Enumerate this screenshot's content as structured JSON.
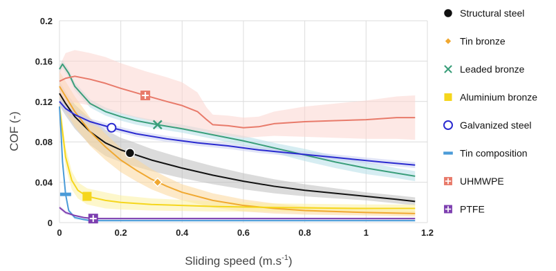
{
  "chart_data": {
    "type": "line",
    "xlabel": "Sliding speed (m.s",
    "xlabel_sup": "-1",
    "xlabel_end": ")",
    "ylabel": "COF (-)",
    "xlim": [
      0,
      1.2
    ],
    "ylim": [
      0,
      0.2
    ],
    "x_ticks": [
      "0",
      "0.2",
      "0.4",
      "0.6",
      "0.8",
      "1",
      "1.2"
    ],
    "y_ticks": [
      "0",
      "0.04",
      "0.08",
      "0.12",
      "0.16",
      "0.2"
    ],
    "grid": true,
    "legend_position": "right",
    "series": [
      {
        "name": "Structural steel",
        "color": "#111111",
        "band_color": "#bdbdbd",
        "marker": "circle-filled",
        "marker_point": [
          0.23,
          0.069
        ],
        "x": [
          0.0,
          0.02,
          0.05,
          0.1,
          0.15,
          0.2,
          0.23,
          0.3,
          0.4,
          0.5,
          0.6,
          0.7,
          0.8,
          0.9,
          1.0,
          1.1,
          1.16
        ],
        "y": [
          0.128,
          0.118,
          0.105,
          0.09,
          0.079,
          0.072,
          0.069,
          0.062,
          0.054,
          0.047,
          0.041,
          0.036,
          0.032,
          0.029,
          0.026,
          0.023,
          0.021
        ],
        "band": [
          0.012,
          0.012,
          0.012,
          0.013,
          0.013,
          0.012,
          0.012,
          0.011,
          0.01,
          0.009,
          0.008,
          0.007,
          0.006,
          0.005,
          0.004,
          0.004,
          0.004
        ]
      },
      {
        "name": "Tin bronze",
        "color": "#f0a830",
        "band_color": "#fbd79a",
        "marker": "diamond",
        "marker_point": [
          0.32,
          0.04
        ],
        "x": [
          0.0,
          0.02,
          0.05,
          0.1,
          0.15,
          0.2,
          0.25,
          0.3,
          0.35,
          0.4,
          0.5,
          0.6,
          0.7,
          0.8,
          1.0,
          1.16
        ],
        "y": [
          0.135,
          0.125,
          0.11,
          0.09,
          0.075,
          0.062,
          0.052,
          0.043,
          0.036,
          0.03,
          0.022,
          0.017,
          0.014,
          0.012,
          0.01,
          0.009
        ],
        "band": [
          0.015,
          0.015,
          0.015,
          0.014,
          0.013,
          0.012,
          0.011,
          0.01,
          0.009,
          0.008,
          0.007,
          0.006,
          0.005,
          0.004,
          0.003,
          0.003
        ]
      },
      {
        "name": "Leaded bronze",
        "color": "#3a9e7a",
        "band_color": "#b5dfe8",
        "marker": "x",
        "marker_point": [
          0.32,
          0.097
        ],
        "x": [
          0.0,
          0.01,
          0.03,
          0.05,
          0.1,
          0.15,
          0.2,
          0.25,
          0.32,
          0.4,
          0.5,
          0.6,
          0.7,
          0.8,
          0.9,
          1.0,
          1.1,
          1.16
        ],
        "y": [
          0.152,
          0.157,
          0.148,
          0.135,
          0.118,
          0.11,
          0.105,
          0.101,
          0.097,
          0.093,
          0.087,
          0.081,
          0.074,
          0.067,
          0.06,
          0.054,
          0.049,
          0.046
        ],
        "band": [
          0.004,
          0.004,
          0.004,
          0.004,
          0.004,
          0.004,
          0.004,
          0.004,
          0.004,
          0.004,
          0.004,
          0.005,
          0.005,
          0.006,
          0.006,
          0.006,
          0.005,
          0.005
        ]
      },
      {
        "name": "Aluminium bronze",
        "color": "#f5d61c",
        "band_color": "#fbf0a0",
        "marker": "square",
        "marker_point": [
          0.09,
          0.026
        ],
        "x": [
          0.0,
          0.01,
          0.02,
          0.04,
          0.06,
          0.09,
          0.15,
          0.2,
          0.3,
          0.5,
          0.7,
          1.0,
          1.16
        ],
        "y": [
          0.115,
          0.09,
          0.065,
          0.042,
          0.032,
          0.026,
          0.022,
          0.02,
          0.018,
          0.016,
          0.015,
          0.014,
          0.014
        ],
        "band": [
          0.01,
          0.01,
          0.01,
          0.009,
          0.008,
          0.008,
          0.008,
          0.007,
          0.006,
          0.005,
          0.004,
          0.004,
          0.004
        ]
      },
      {
        "name": "Galvanized steel",
        "color": "#2a2ad0",
        "band_color": "#c8cdf0",
        "marker": "circle-open",
        "marker_point": [
          0.17,
          0.094
        ],
        "x": [
          0.0,
          0.02,
          0.05,
          0.1,
          0.17,
          0.25,
          0.35,
          0.45,
          0.55,
          0.65,
          0.75,
          0.85,
          0.95,
          1.05,
          1.16
        ],
        "y": [
          0.12,
          0.113,
          0.107,
          0.1,
          0.094,
          0.088,
          0.083,
          0.079,
          0.076,
          0.072,
          0.069,
          0.066,
          0.063,
          0.06,
          0.057
        ],
        "band": [
          0.004,
          0.004,
          0.004,
          0.003,
          0.003,
          0.003,
          0.003,
          0.003,
          0.003,
          0.003,
          0.003,
          0.003,
          0.003,
          0.003,
          0.003
        ]
      },
      {
        "name": "Tin composition",
        "color": "#4a9bd8",
        "band_color": "#d0e6f5",
        "marker": "dash",
        "marker_point": [
          0.02,
          0.028
        ],
        "x": [
          0.0,
          0.005,
          0.01,
          0.02,
          0.03,
          0.05,
          0.08,
          0.1,
          0.2,
          0.4,
          0.7,
          1.0,
          1.16
        ],
        "y": [
          0.115,
          0.09,
          0.06,
          0.028,
          0.012,
          0.005,
          0.003,
          0.002,
          0.002,
          0.002,
          0.002,
          0.002,
          0.002
        ],
        "band": [
          0.004,
          0.004,
          0.004,
          0.003,
          0.002,
          0.002,
          0.001,
          0.001,
          0.001,
          0.001,
          0.001,
          0.001,
          0.001
        ]
      },
      {
        "name": "UHMWPE",
        "color": "#e87a6a",
        "band_color": "#fbd6d0",
        "marker": "square-plus",
        "marker_point": [
          0.28,
          0.126
        ],
        "x": [
          0.0,
          0.02,
          0.05,
          0.1,
          0.15,
          0.2,
          0.28,
          0.35,
          0.4,
          0.45,
          0.48,
          0.5,
          0.55,
          0.6,
          0.65,
          0.7,
          0.8,
          0.9,
          1.0,
          1.1,
          1.16
        ],
        "y": [
          0.14,
          0.143,
          0.145,
          0.142,
          0.138,
          0.133,
          0.126,
          0.12,
          0.116,
          0.11,
          0.102,
          0.097,
          0.096,
          0.094,
          0.095,
          0.098,
          0.1,
          0.101,
          0.102,
          0.104,
          0.104
        ],
        "band": [
          0.015,
          0.025,
          0.026,
          0.026,
          0.026,
          0.025,
          0.024,
          0.024,
          0.023,
          0.019,
          0.012,
          0.01,
          0.01,
          0.01,
          0.01,
          0.012,
          0.015,
          0.017,
          0.019,
          0.021,
          0.022
        ]
      },
      {
        "name": "PTFE",
        "color": "#7d3fb0",
        "band_color": "#e2d3ef",
        "marker": "square-plus",
        "marker_point": [
          0.11,
          0.004
        ],
        "x": [
          0.0,
          0.02,
          0.05,
          0.08,
          0.11,
          0.2,
          0.4,
          0.6,
          0.8,
          1.0,
          1.16
        ],
        "y": [
          0.015,
          0.01,
          0.007,
          0.005,
          0.004,
          0.004,
          0.004,
          0.004,
          0.004,
          0.004,
          0.004
        ],
        "band": [
          0.002,
          0.002,
          0.001,
          0.001,
          0.001,
          0.001,
          0.001,
          0.001,
          0.001,
          0.001,
          0.001
        ]
      }
    ]
  }
}
